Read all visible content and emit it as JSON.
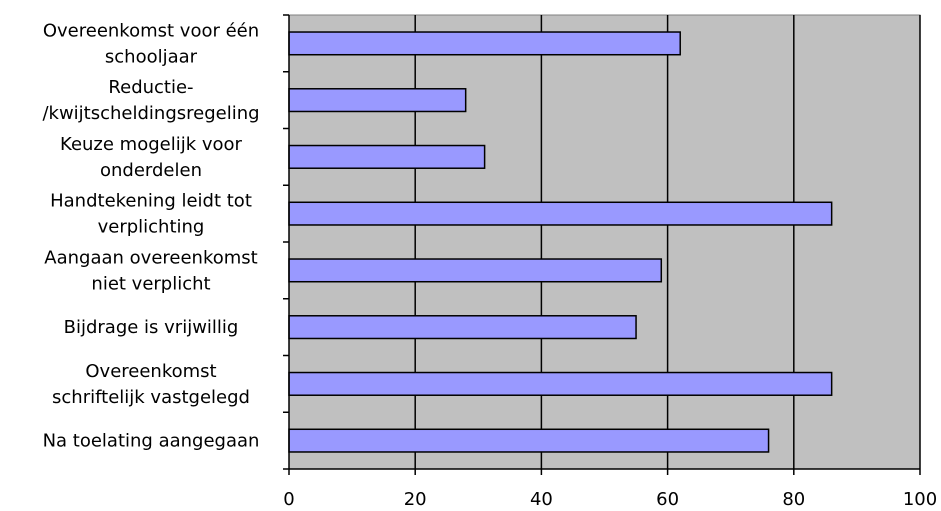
{
  "chart_data": {
    "type": "bar",
    "orientation": "horizontal",
    "categories": [
      [
        "Overeenkomst voor één",
        "schooljaar"
      ],
      [
        "Reductie-",
        "/kwijtscheldingsregeling"
      ],
      [
        "Keuze mogelijk voor",
        "onderdelen"
      ],
      [
        "Handtekening leidt tot",
        "verplichting"
      ],
      [
        "Aangaan overeenkomst",
        "niet verplicht"
      ],
      [
        "Bijdrage is vrijwillig"
      ],
      [
        "Overeenkomst",
        "schriftelijk vastgelegd"
      ],
      [
        "Na toelating aangegaan"
      ]
    ],
    "values": [
      62,
      28,
      31,
      86,
      59,
      55,
      86,
      76
    ],
    "xlim": [
      0,
      100
    ],
    "xticks": [
      0,
      20,
      40,
      60,
      80,
      100
    ],
    "xtick_labels": [
      "0",
      "20",
      "40",
      "60",
      "80",
      "100"
    ],
    "title": "",
    "xlabel": "",
    "ylabel": "",
    "grid": "vertical",
    "legend": "none",
    "colors": {
      "bar_fill": "#9999ff",
      "bar_stroke": "#000000",
      "plot_background": "#c0c0c0",
      "gridline": "#000000"
    }
  }
}
